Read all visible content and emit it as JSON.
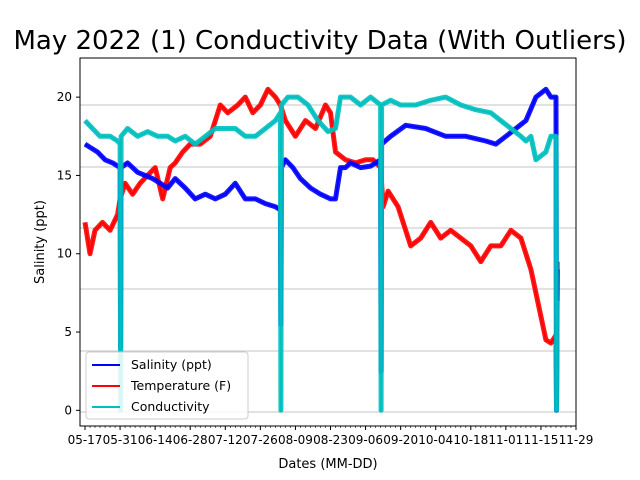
{
  "chart_data": {
    "type": "line",
    "title": "May 2022 (1) Conductivity Data (With Outliers)",
    "xlabel": "Dates (MM-DD)",
    "ylabel": "Salinity (ppt)",
    "ylabel_color": "#0000ff",
    "ylim": [
      -1,
      22.5
    ],
    "yticks": [
      0,
      5,
      10,
      15,
      20
    ],
    "xticks": [
      "05-17",
      "05-31",
      "06-14",
      "06-28",
      "07-12",
      "07-26",
      "08-09",
      "08-23",
      "09-06",
      "09-20",
      "10-04",
      "10-18",
      "11-01",
      "11-15",
      "11-29"
    ],
    "xlim_days": [
      -2,
      196
    ],
    "grid": "horizontal gridlines",
    "legend_position": "lower-left",
    "series": [
      {
        "name": "Salinity (ppt)",
        "color": "#0000ff",
        "x_days": [
          0,
          2,
          5,
          8,
          11,
          14,
          14.2,
          14.4,
          17,
          21,
          24,
          27,
          30,
          33,
          36,
          40,
          44,
          48,
          52,
          56,
          60,
          64,
          68,
          72,
          76,
          78,
          78.2,
          78.4,
          80,
          83,
          86,
          90,
          94,
          98,
          100,
          102,
          104,
          106,
          110,
          114,
          118,
          118.2,
          118.4,
          122,
          128,
          136,
          144,
          152,
          160,
          164,
          168,
          172,
          176,
          180,
          184,
          186,
          188,
          188.2,
          188.5
        ],
        "values": [
          17,
          16.8,
          16.5,
          16,
          15.8,
          15.5,
          4,
          15.5,
          15.8,
          15.2,
          15,
          14.8,
          14.5,
          14.2,
          14.8,
          14.2,
          13.5,
          13.8,
          13.5,
          13.8,
          14.5,
          13.5,
          13.5,
          13.2,
          13,
          12.8,
          5.5,
          15.5,
          16,
          15.5,
          14.8,
          14.2,
          13.8,
          13.5,
          13.5,
          15.5,
          15.5,
          15.8,
          15.5,
          15.6,
          16,
          2.5,
          17,
          17.5,
          18.2,
          18,
          17.5,
          17.5,
          17.2,
          17,
          17.5,
          18,
          18.5,
          20,
          20.5,
          20,
          20,
          0,
          9
        ]
      },
      {
        "name": "Temperature (F)",
        "color": "#ff0000",
        "x_days": [
          0,
          2,
          4,
          7,
          10,
          13,
          14,
          16,
          19,
          22,
          25,
          28,
          31,
          34,
          36,
          39,
          42,
          46,
          50,
          54,
          57,
          61,
          64,
          67,
          70,
          73,
          76,
          78,
          80,
          84,
          88,
          92,
          96,
          98,
          100,
          104,
          108,
          112,
          115,
          118,
          119,
          121,
          125,
          130,
          134,
          138,
          142,
          146,
          150,
          154,
          158,
          162,
          166,
          170,
          174,
          178,
          180,
          182,
          184,
          186,
          188,
          188.2,
          188.5
        ],
        "values": [
          12,
          10,
          11.5,
          12,
          11.5,
          12.5,
          13.5,
          14.5,
          13.8,
          14.5,
          15,
          15.5,
          13.5,
          15.5,
          15.8,
          16.5,
          17,
          17,
          17.5,
          19.5,
          19,
          19.5,
          20,
          19,
          19.5,
          20.5,
          20,
          19.5,
          18.5,
          17.5,
          18.5,
          18,
          19.5,
          19,
          16.5,
          16,
          15.8,
          16,
          16,
          15.5,
          13,
          14,
          13,
          10.5,
          11,
          12,
          11,
          11.5,
          11,
          10.5,
          9.5,
          10.5,
          10.5,
          11.5,
          11,
          9,
          7.5,
          6,
          4.5,
          4.3,
          4.8,
          0,
          9.5
        ]
      },
      {
        "name": "Conductivity",
        "color": "#00bfbf",
        "x_days": [
          0,
          3,
          6,
          10,
          13,
          14,
          14.2,
          14.4,
          17,
          21,
          25,
          29,
          33,
          36,
          40,
          44,
          48,
          52,
          56,
          60,
          64,
          68,
          72,
          76,
          78,
          78.2,
          78.4,
          81,
          85,
          89,
          93,
          97,
          100,
          102,
          106,
          110,
          114,
          118,
          118.2,
          118.4,
          122,
          126,
          132,
          138,
          144,
          150,
          156,
          162,
          166,
          170,
          174,
          176,
          178,
          180,
          184,
          186,
          188,
          188.2,
          188.5
        ],
        "values": [
          18.5,
          18,
          17.5,
          17.5,
          17.2,
          17,
          0,
          17.5,
          18,
          17.5,
          17.8,
          17.5,
          17.5,
          17.2,
          17.5,
          17,
          17.5,
          18,
          18,
          18,
          17.5,
          17.5,
          18,
          18.5,
          19,
          0,
          19.5,
          20,
          20,
          19.5,
          18.5,
          17.8,
          18,
          20,
          20,
          19.5,
          20,
          19.5,
          0,
          19.5,
          19.8,
          19.5,
          19.5,
          19.8,
          20,
          19.5,
          19.2,
          19,
          18.5,
          18,
          17.5,
          17.2,
          17.5,
          16,
          16.5,
          17.5,
          17.5,
          0,
          7
        ]
      }
    ]
  }
}
